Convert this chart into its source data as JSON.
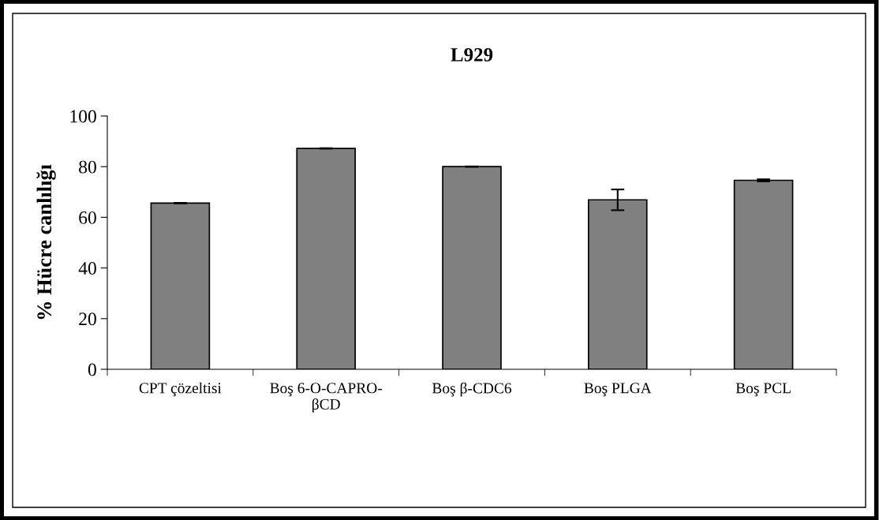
{
  "chart_data": {
    "type": "bar",
    "title": "L929",
    "ylabel": "% Hücre canlılığı",
    "categories": [
      "CPT çözeltisi",
      "Boş 6-O-CAPRO-\nβCD",
      "Boş β-CDC6",
      "Boş PLGA",
      "Boş PCL"
    ],
    "values": [
      65.6,
      87.2,
      80.0,
      66.9,
      74.6
    ],
    "errors": [
      0.1,
      0.1,
      0.1,
      4.1,
      0.4
    ],
    "color": "#808080",
    "ylim": [
      0,
      100
    ],
    "yticks": [
      0,
      20,
      40,
      60,
      80,
      100
    ],
    "grid": false,
    "legend": false
  }
}
